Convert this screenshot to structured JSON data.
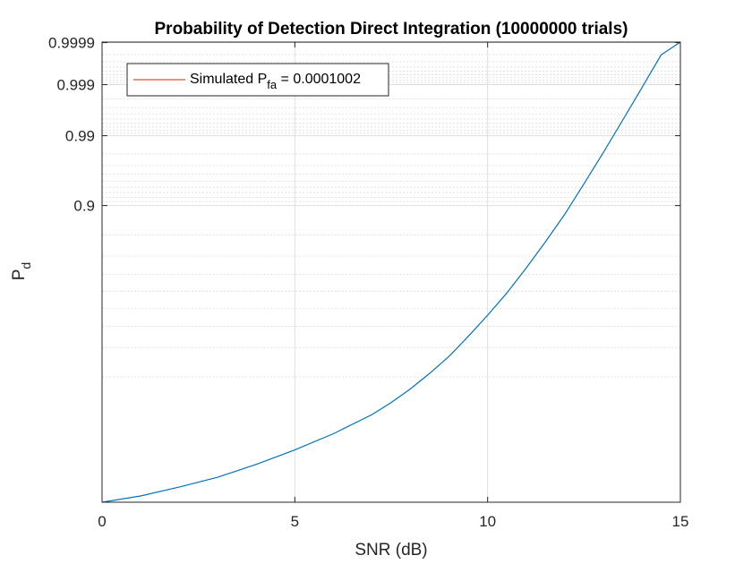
{
  "chart_data": {
    "type": "line",
    "title": "Probability of Detection Direct Integration (10000000 trials)",
    "xlabel": "SNR (dB)",
    "ylabel": {
      "main": "P",
      "sub": "d"
    },
    "xlim": [
      0,
      15
    ],
    "x_ticks": [
      0,
      5,
      10,
      15
    ],
    "y_scale": "normal-probability",
    "y_ticks": [
      0.9,
      0.99,
      0.999,
      0.9999
    ],
    "y_tick_labels": [
      "0.9",
      "0.99",
      "0.999",
      "0.9999"
    ],
    "grid": true,
    "legend_placement": "top-left",
    "series": [
      {
        "name": "Simulated P",
        "name_sub": "fa",
        "name_suffix": " = 0.0001002",
        "legend_color": "#D95319",
        "line_color": "#0072BD",
        "x": [
          0,
          1,
          2,
          3,
          4,
          5,
          6,
          7,
          7.5,
          8,
          8.5,
          9,
          9.5,
          10,
          10.5,
          11,
          11.5,
          12,
          12.5,
          13,
          13.5,
          14,
          14.5,
          15
        ],
        "y": [
          0.0008,
          0.0011,
          0.0017,
          0.0027,
          0.0048,
          0.0088,
          0.0165,
          0.0325,
          0.048,
          0.072,
          0.11,
          0.165,
          0.25,
          0.36,
          0.49,
          0.635,
          0.77,
          0.875,
          0.946,
          0.981,
          0.9947,
          0.99882,
          0.999796,
          0.999903
        ]
      }
    ]
  }
}
